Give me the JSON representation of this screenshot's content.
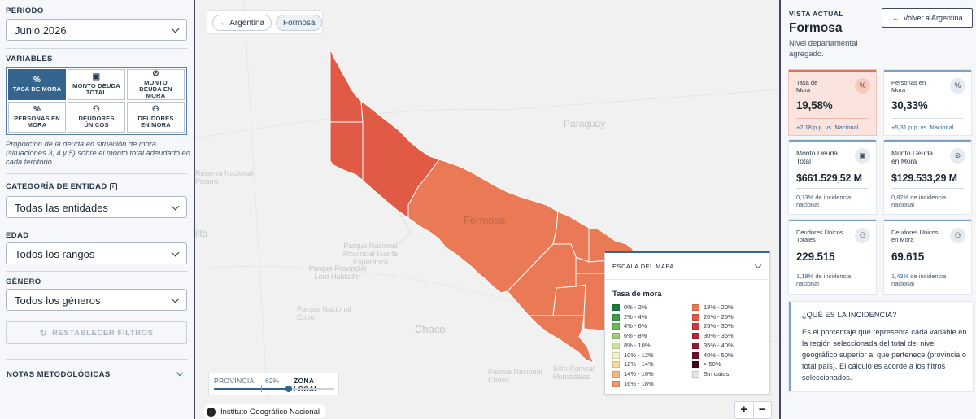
{
  "sidebar": {
    "periodo_label": "PERÍODO",
    "periodo_value": "Junio 2026",
    "variables_label": "VARIABLES",
    "variables": [
      {
        "label": "TASA DE MORA",
        "icon": "%",
        "active": true
      },
      {
        "label": "MONTO DEUDA TOTAL",
        "icon": "money-icon",
        "active": false
      },
      {
        "label": "MONTO DEUDA EN MORA",
        "icon": "money-off-icon",
        "active": false
      },
      {
        "label": "PERSONAS EN MORA",
        "icon": "%",
        "active": false
      },
      {
        "label": "DEUDORES ÚNICOS",
        "icon": "people-icon",
        "active": false
      },
      {
        "label": "DEUDORES EN MORA",
        "icon": "people-off-icon",
        "active": false
      }
    ],
    "variable_description": "Proporción de la deuda en situación de mora (situaciones 3, 4 y 5) sobre el monto total adeudado en cada territorio.",
    "categoria_label": "CATEGORÍA DE ENTIDAD",
    "categoria_value": "Todas las entidades",
    "edad_label": "EDAD",
    "edad_value": "Todos los rangos",
    "genero_label": "GÉNERO",
    "genero_value": "Todos los géneros",
    "reset_label": "RESTABLECER FILTROS",
    "notas_label": "NOTAS METODOLÓGICAS"
  },
  "map": {
    "breadcrumb_back": "Argentina",
    "breadcrumb_current": "Formosa",
    "place_labels": {
      "paraguay": "Paraguay",
      "formosa": "Formosa",
      "chaco": "Chaco",
      "ilta": "ilta",
      "reserva": "Reserva Nacional Pizarro",
      "parque_fuerte": "Parque Nacional Provincial Fuerte Esperanza",
      "parque_loro": "Parque Provincial Loro Hablador",
      "parque_copo": "Parque Nacional Copo",
      "chaco_small": "Parque Nacional Chaco",
      "humedales": "Humedales",
      "sitio": "Sitio Ramsar"
    },
    "slider": {
      "left_label": "PROVINCIA",
      "value": "62%",
      "right_label": "ZONA LOCAL",
      "fraction": 0.62
    },
    "attribution": "Instituto Geográfico Nacional",
    "zoom_in": "+",
    "zoom_out": "−",
    "legend": {
      "header": "ESCALA DEL MAPA",
      "title": "Tasa de mora",
      "items": [
        {
          "label": "0% - 2%",
          "color": "#1b7a3a"
        },
        {
          "label": "2% - 4%",
          "color": "#3d9a4a"
        },
        {
          "label": "4% - 6%",
          "color": "#6bb85a"
        },
        {
          "label": "6% - 8%",
          "color": "#9fd07a"
        },
        {
          "label": "8% - 10%",
          "color": "#cfe6a0"
        },
        {
          "label": "10% - 12%",
          "color": "#f4f4c8"
        },
        {
          "label": "12% - 14%",
          "color": "#f9d99c"
        },
        {
          "label": "14% - 16%",
          "color": "#f7b97b"
        },
        {
          "label": "16% - 18%",
          "color": "#f29a6a"
        },
        {
          "label": "18% - 20%",
          "color": "#ea7a55"
        },
        {
          "label": "20% - 25%",
          "color": "#e05a45"
        },
        {
          "label": "25% - 30%",
          "color": "#cc3a3a"
        },
        {
          "label": "30% - 35%",
          "color": "#b22637"
        },
        {
          "label": "35% - 40%",
          "color": "#951831"
        },
        {
          "label": "40% - 50%",
          "color": "#6e0e26"
        },
        {
          "label": "> 50%",
          "color": "#440717"
        },
        {
          "label": "Sin datos",
          "color": "#e4e6ea"
        }
      ]
    }
  },
  "detail": {
    "vista_label": "VISTA ACTUAL",
    "back_label": "Volver a Argentina",
    "province": "Formosa",
    "subtitle": "Nivel departamental agregado.",
    "cards": [
      {
        "name": "Tasa de Mora",
        "icon": "%",
        "value": "19,58%",
        "sub": "+2,18 p.p. vs. Nacional",
        "highlight": true
      },
      {
        "name": "Personas en Mora",
        "icon": "%",
        "value": "30,33%",
        "sub": "+5,31 p.p. vs. Nacional",
        "highlight": false
      },
      {
        "name": "Monto Deuda Total",
        "icon": "money-icon",
        "value": "$661.529,52 M",
        "sub_value": "0,73%",
        "sub_text": " de incidencia nacional",
        "highlight": false
      },
      {
        "name": "Monto Deuda en Mora",
        "icon": "money-off-icon",
        "value": "$129.533,29 M",
        "sub_value": "0,82%",
        "sub_text": " de incidencia nacional",
        "highlight": false
      },
      {
        "name": "Deudores Únicos Totales",
        "icon": "people-icon",
        "value": "229.515",
        "sub_value": "1,18%",
        "sub_text": " de incidencia nacional",
        "highlight": false
      },
      {
        "name": "Deudores Únicos en Mora",
        "icon": "people-off-icon",
        "value": "69.615",
        "sub_value": "1,43%",
        "sub_text": " de incidencia nacional",
        "highlight": false
      }
    ],
    "incidencia_title": "¿QUÉ ES LA INCIDENCIA?",
    "incidencia_text": "Es el porcentaje que representa cada variable en la región seleccionada del total del nivel geográfico superior al que pertenece (provincia o total país). El cálculo es acorde a los filtros seleccionados."
  }
}
